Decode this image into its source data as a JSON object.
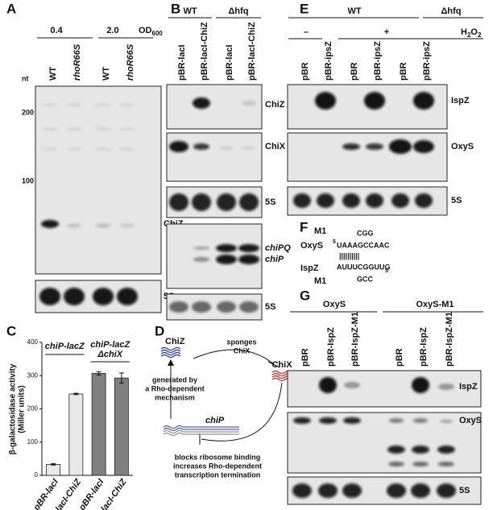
{
  "panels": {
    "A": {
      "letter": "A",
      "od_values": [
        "0.4",
        "2.0"
      ],
      "od_label": "OD",
      "od_sub": "600",
      "lanes": [
        "WT",
        "rhoR66S",
        "WT",
        "rhoR66S"
      ],
      "unit": "nt",
      "markers": [
        "200",
        "100"
      ],
      "bands": [
        "ChiZ",
        "5S"
      ]
    },
    "B": {
      "letter": "B",
      "groups": [
        "WT",
        "Δhfq"
      ],
      "lanes": [
        "pBR-lacI",
        "pBR-lacI-ChiZ",
        "pBR-lacI",
        "pBR-lacI-ChiZ"
      ],
      "bands": [
        "ChiZ",
        "ChiX",
        "5S",
        "chiPQ",
        "chiP",
        "5S"
      ]
    },
    "C": {
      "letter": "C"
    },
    "D": {
      "letter": "D",
      "chiz": "ChiZ",
      "sponges": [
        "sponges",
        "ChiX"
      ],
      "chix": "ChiX",
      "generated": [
        "generated by",
        "a Rho-dependent",
        "mechanism"
      ],
      "chip": "chiP",
      "blocks": [
        "blocks ribosome binding",
        "increases Rho-dependent",
        "transcription termination"
      ]
    },
    "E": {
      "letter": "E",
      "groups": [
        "WT",
        "Δhfq"
      ],
      "treatments": [
        "–",
        "+"
      ],
      "h2o2": "H",
      "h2o2_sub": "2",
      "h2o2_end": "O",
      "h2o2_sub2": "2",
      "lanes": [
        "pBR",
        "pBR-ipsZ",
        "pBR",
        "pBR-ipsZ",
        "pBR",
        "pBR-ipsZ"
      ],
      "bands": [
        "IspZ",
        "OxyS",
        "5S"
      ]
    },
    "F": {
      "letter": "F",
      "top_mut_label": "M1",
      "top_mut": "CGG",
      "oxys": "OxyS",
      "oxys_prime": "5",
      "oxys_seq": "UAAAGCCAAC",
      "pairs": "||||||||||",
      "ispz": "IspZ",
      "ispz_seq": "AUUUCGGUUG",
      "ispz_prime": "5'",
      "bottom_mut_label": "M1",
      "bottom_mut": "GCC"
    },
    "G": {
      "letter": "G",
      "groups": [
        "OxyS",
        "OxyS-M1"
      ],
      "lanes": [
        "pBR",
        "pBR-IspZ",
        "pBR-IspZ-M1",
        "pBR",
        "pBR-IspZ",
        "pBR-IspZ-M1"
      ],
      "bands": [
        "IspZ",
        "OxyS",
        "5S"
      ]
    }
  },
  "chart_data": {
    "type": "bar",
    "ylabel": [
      "β-galactosidase activity",
      "(Miller units)"
    ],
    "categories": [
      "pBR-lacI",
      "pBR-lacI-ChiZ",
      "pBR-lacI",
      "pBR-lacI-ChiZ"
    ],
    "values": [
      33,
      245,
      307,
      293
    ],
    "errors": [
      2,
      2,
      5,
      15
    ],
    "colors": [
      "#e8e8e8",
      "#e8e8e8",
      "#808080",
      "#808080"
    ],
    "groups": [
      {
        "label": "chiP-lacZ"
      },
      {
        "label": "chiP-lacZ",
        "sublabel": "ΔchiX"
      }
    ],
    "ylim": [
      0,
      400
    ],
    "yticks": [
      0,
      100,
      200,
      300,
      400
    ]
  }
}
